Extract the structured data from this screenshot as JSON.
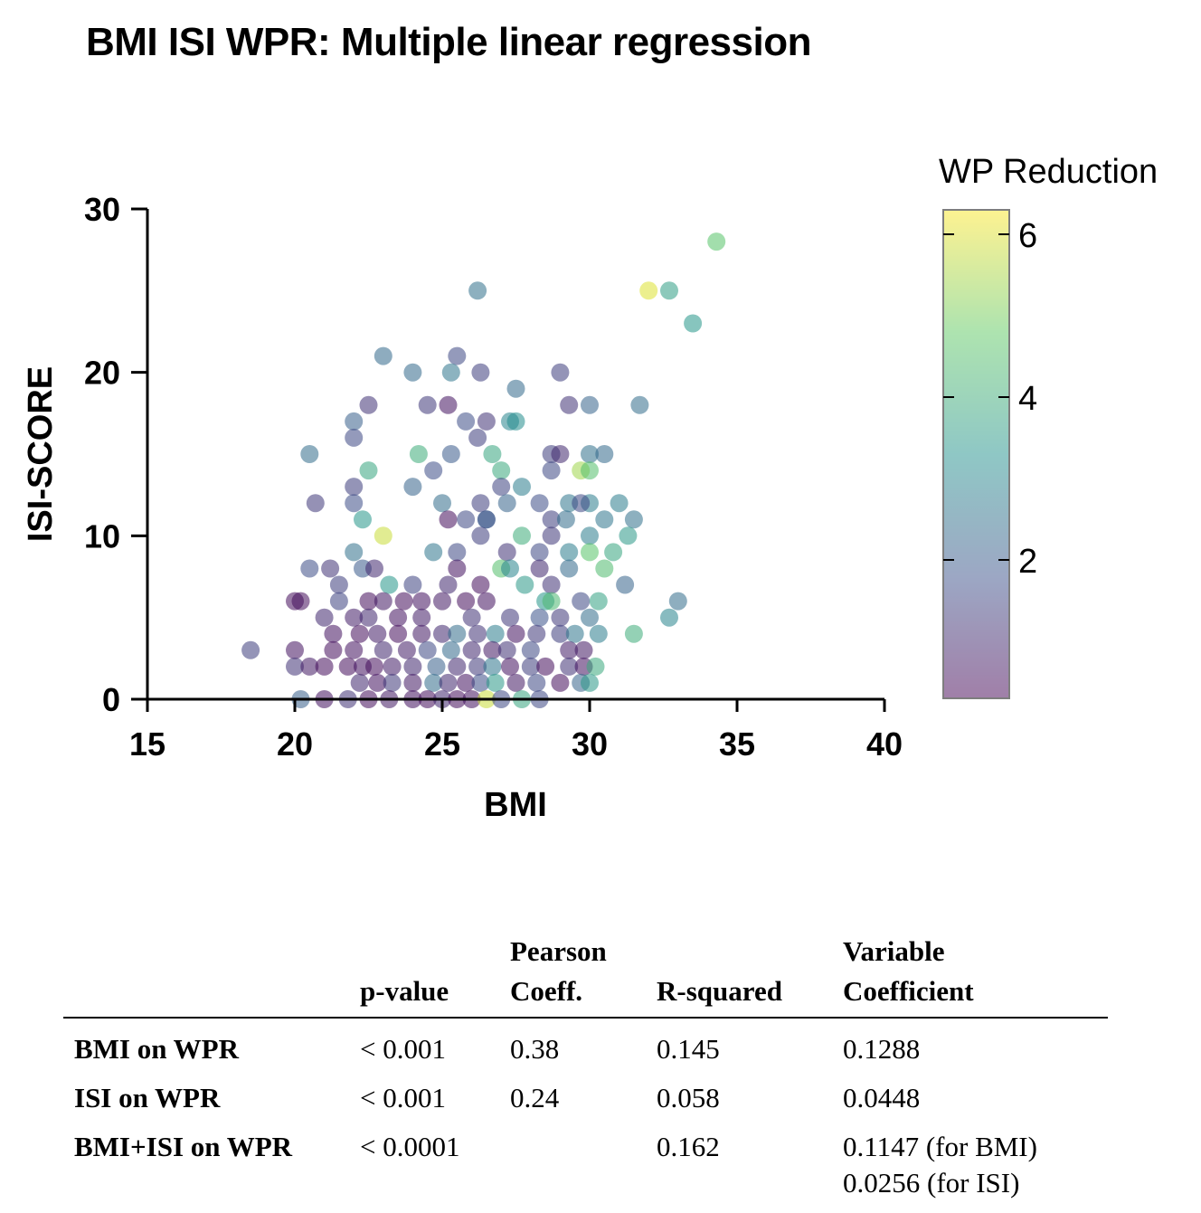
{
  "chart_data": {
    "type": "scatter",
    "title": "BMI ISI WPR: Multiple linear regression",
    "xlabel": "BMI",
    "ylabel": "ISI-SCORE",
    "xlim": [
      15,
      40
    ],
    "ylim": [
      0,
      30
    ],
    "xticks": [
      "15",
      "20",
      "25",
      "30",
      "35",
      "40"
    ],
    "yticks": [
      "0",
      "10",
      "20",
      "30"
    ],
    "colorbar": {
      "label": "WP Reduction",
      "range": [
        0.3,
        6.3
      ],
      "ticks": [
        "2",
        "4",
        "6"
      ],
      "colormap": "viridis"
    },
    "points": [
      [
        34.3,
        28,
        4.6
      ],
      [
        32.0,
        25,
        6.0
      ],
      [
        32.7,
        25,
        3.6
      ],
      [
        33.5,
        23,
        3.4
      ],
      [
        26.2,
        25,
        2.5
      ],
      [
        23.0,
        21,
        2.3
      ],
      [
        25.5,
        21,
        1.6
      ],
      [
        24.0,
        20,
        2.3
      ],
      [
        25.3,
        20,
        2.6
      ],
      [
        26.3,
        20,
        1.4
      ],
      [
        29.0,
        20,
        1.4
      ],
      [
        27.5,
        19,
        2.3
      ],
      [
        22.5,
        18,
        1.2
      ],
      [
        24.5,
        18,
        1.3
      ],
      [
        25.2,
        18,
        0.6
      ],
      [
        29.3,
        18,
        1.2
      ],
      [
        30.0,
        18,
        2.2
      ],
      [
        31.7,
        18,
        2.4
      ],
      [
        22.0,
        17,
        2.1
      ],
      [
        25.8,
        17,
        1.7
      ],
      [
        26.5,
        17,
        1.2
      ],
      [
        27.3,
        17,
        3.0
      ],
      [
        27.5,
        17,
        3.2
      ],
      [
        22.0,
        16,
        1.6
      ],
      [
        26.2,
        16,
        1.4
      ],
      [
        20.5,
        15,
        2.4
      ],
      [
        24.2,
        15,
        4.0
      ],
      [
        25.3,
        15,
        2.0
      ],
      [
        26.7,
        15,
        3.8
      ],
      [
        28.7,
        15,
        1.4
      ],
      [
        29.0,
        15,
        1.0
      ],
      [
        30.0,
        15,
        2.5
      ],
      [
        30.5,
        15,
        2.3
      ],
      [
        22.5,
        14,
        3.8
      ],
      [
        24.7,
        14,
        1.7
      ],
      [
        27.0,
        14,
        3.9
      ],
      [
        28.7,
        14,
        1.6
      ],
      [
        29.7,
        14,
        5.4
      ],
      [
        30.0,
        14,
        4.5
      ],
      [
        24.0,
        13,
        2.2
      ],
      [
        27.0,
        13,
        1.5
      ],
      [
        27.7,
        13,
        2.8
      ],
      [
        22.0,
        13,
        1.4
      ],
      [
        20.7,
        12,
        1.3
      ],
      [
        25.0,
        12,
        2.4
      ],
      [
        26.3,
        12,
        1.4
      ],
      [
        27.2,
        12,
        2.2
      ],
      [
        28.3,
        12,
        1.7
      ],
      [
        29.3,
        12,
        2.6
      ],
      [
        30.0,
        12,
        2.8
      ],
      [
        31.0,
        12,
        2.8
      ],
      [
        22.0,
        12,
        1.7
      ],
      [
        29.7,
        12,
        1.6
      ],
      [
        22.3,
        11,
        3.4
      ],
      [
        25.2,
        11,
        0.5
      ],
      [
        25.8,
        11,
        1.6
      ],
      [
        26.5,
        11,
        1.7
      ],
      [
        26.5,
        11,
        2.0
      ],
      [
        28.7,
        11,
        1.4
      ],
      [
        29.2,
        11,
        2.4
      ],
      [
        30.5,
        11,
        2.6
      ],
      [
        31.5,
        11,
        2.5
      ],
      [
        23.0,
        10,
        5.8
      ],
      [
        26.3,
        10,
        1.4
      ],
      [
        27.7,
        10,
        4.0
      ],
      [
        28.7,
        10,
        1.3
      ],
      [
        30.0,
        10,
        2.8
      ],
      [
        31.3,
        10,
        3.5
      ],
      [
        22.0,
        9,
        2.5
      ],
      [
        24.7,
        9,
        2.6
      ],
      [
        25.5,
        9,
        1.6
      ],
      [
        27.2,
        9,
        1.2
      ],
      [
        28.3,
        9,
        1.6
      ],
      [
        29.3,
        9,
        2.8
      ],
      [
        30.0,
        9,
        4.6
      ],
      [
        30.8,
        9,
        3.8
      ],
      [
        20.5,
        8,
        1.7
      ],
      [
        21.2,
        8,
        1.2
      ],
      [
        22.3,
        8,
        2.0
      ],
      [
        22.7,
        8,
        1.0
      ],
      [
        25.5,
        8,
        0.6
      ],
      [
        27.0,
        8,
        4.5
      ],
      [
        27.3,
        8,
        3.0
      ],
      [
        28.3,
        8,
        1.0
      ],
      [
        29.3,
        8,
        2.3
      ],
      [
        30.5,
        8,
        4.4
      ],
      [
        21.5,
        7,
        1.4
      ],
      [
        23.2,
        7,
        3.4
      ],
      [
        24.0,
        7,
        1.5
      ],
      [
        25.2,
        7,
        1.0
      ],
      [
        26.3,
        7,
        0.5
      ],
      [
        27.8,
        7,
        3.5
      ],
      [
        28.7,
        7,
        1.2
      ],
      [
        31.2,
        7,
        2.2
      ],
      [
        20.0,
        6,
        0.5
      ],
      [
        20.2,
        6,
        0.5
      ],
      [
        21.5,
        6,
        1.5
      ],
      [
        22.5,
        6,
        0.5
      ],
      [
        23.0,
        6,
        0.7
      ],
      [
        23.7,
        6,
        0.5
      ],
      [
        24.3,
        6,
        0.6
      ],
      [
        25.0,
        6,
        0.7
      ],
      [
        25.8,
        6,
        0.5
      ],
      [
        26.5,
        6,
        0.6
      ],
      [
        28.5,
        6,
        3.4
      ],
      [
        28.7,
        6,
        4.3
      ],
      [
        29.7,
        6,
        1.6
      ],
      [
        30.3,
        6,
        3.7
      ],
      [
        33.0,
        6,
        2.4
      ],
      [
        21.0,
        5,
        1.0
      ],
      [
        22.0,
        5,
        0.8
      ],
      [
        22.5,
        5,
        1.0
      ],
      [
        23.5,
        5,
        0.6
      ],
      [
        24.3,
        5,
        0.8
      ],
      [
        26.0,
        5,
        1.2
      ],
      [
        27.3,
        5,
        1.3
      ],
      [
        28.3,
        5,
        1.8
      ],
      [
        29.0,
        5,
        1.3
      ],
      [
        30.0,
        5,
        2.4
      ],
      [
        32.7,
        5,
        3.0
      ],
      [
        21.3,
        4,
        0.6
      ],
      [
        22.2,
        4,
        0.5
      ],
      [
        22.8,
        4,
        0.8
      ],
      [
        23.5,
        4,
        0.5
      ],
      [
        24.3,
        4,
        0.7
      ],
      [
        25.0,
        4,
        1.0
      ],
      [
        25.5,
        4,
        2.4
      ],
      [
        26.2,
        4,
        1.2
      ],
      [
        26.8,
        4,
        2.8
      ],
      [
        27.5,
        4,
        0.6
      ],
      [
        28.2,
        4,
        1.3
      ],
      [
        29.0,
        4,
        1.4
      ],
      [
        29.5,
        4,
        2.6
      ],
      [
        30.3,
        4,
        2.8
      ],
      [
        31.5,
        4,
        4.0
      ],
      [
        18.5,
        3,
        1.4
      ],
      [
        20.0,
        3,
        0.6
      ],
      [
        21.3,
        3,
        0.5
      ],
      [
        22.0,
        3,
        0.6
      ],
      [
        23.0,
        3,
        1.0
      ],
      [
        23.8,
        3,
        0.8
      ],
      [
        24.5,
        3,
        1.6
      ],
      [
        25.3,
        3,
        2.3
      ],
      [
        26.0,
        3,
        1.0
      ],
      [
        26.7,
        3,
        0.7
      ],
      [
        27.2,
        3,
        1.2
      ],
      [
        28.0,
        3,
        1.6
      ],
      [
        29.3,
        3,
        0.8
      ],
      [
        29.8,
        3,
        0.7
      ],
      [
        20.0,
        2,
        1.2
      ],
      [
        20.5,
        2,
        0.7
      ],
      [
        21.0,
        2,
        0.5
      ],
      [
        21.8,
        2,
        0.5
      ],
      [
        22.3,
        2,
        0.6
      ],
      [
        22.7,
        2,
        0.5
      ],
      [
        23.3,
        2,
        0.8
      ],
      [
        24.0,
        2,
        1.0
      ],
      [
        24.8,
        2,
        2.1
      ],
      [
        25.5,
        2,
        1.0
      ],
      [
        26.2,
        2,
        1.3
      ],
      [
        26.7,
        2,
        2.6
      ],
      [
        27.3,
        2,
        0.6
      ],
      [
        28.0,
        2,
        1.4
      ],
      [
        28.5,
        2,
        0.5
      ],
      [
        29.3,
        2,
        1.2
      ],
      [
        29.8,
        2,
        0.6
      ],
      [
        30.2,
        2,
        3.9
      ],
      [
        22.2,
        1,
        1.0
      ],
      [
        22.8,
        1,
        0.6
      ],
      [
        23.3,
        1,
        1.3
      ],
      [
        24.0,
        1,
        0.7
      ],
      [
        24.7,
        1,
        2.4
      ],
      [
        25.2,
        1,
        1.0
      ],
      [
        25.8,
        1,
        0.6
      ],
      [
        26.3,
        1,
        1.7
      ],
      [
        26.8,
        1,
        3.5
      ],
      [
        27.5,
        1,
        0.7
      ],
      [
        28.2,
        1,
        1.6
      ],
      [
        29.0,
        1,
        0.5
      ],
      [
        29.7,
        1,
        2.2
      ],
      [
        30.0,
        1,
        3.5
      ],
      [
        20.2,
        0,
        2.1
      ],
      [
        21.0,
        0,
        0.6
      ],
      [
        21.8,
        0,
        1.2
      ],
      [
        22.5,
        0,
        0.5
      ],
      [
        23.2,
        0,
        0.7
      ],
      [
        24.0,
        0,
        0.6
      ],
      [
        24.5,
        0,
        0.5
      ],
      [
        25.0,
        0,
        1.0
      ],
      [
        25.5,
        0,
        0.5
      ],
      [
        26.0,
        0,
        0.6
      ],
      [
        26.5,
        0,
        5.8
      ],
      [
        27.0,
        0,
        1.6
      ],
      [
        27.7,
        0,
        3.8
      ],
      [
        28.3,
        0,
        1.6
      ]
    ]
  },
  "stats_table": {
    "headers": {
      "p_value": "p-value",
      "pearson_1": "Pearson",
      "pearson_2": "Coeff.",
      "r_squared": "R-squared",
      "variable_1": "Variable",
      "variable_2": "Coefficient"
    },
    "rows": [
      {
        "label": "BMI on WPR",
        "p_value": "< 0.001",
        "pearson": "0.38",
        "r_squared": "0.145",
        "coef_1": "0.1288",
        "coef_2": ""
      },
      {
        "label": "ISI on WPR",
        "p_value": "< 0.001",
        "pearson": "0.24",
        "r_squared": "0.058",
        "coef_1": "0.0448",
        "coef_2": ""
      },
      {
        "label": "BMI+ISI on WPR",
        "p_value": "< 0.0001",
        "pearson": "",
        "r_squared": "0.162",
        "coef_1": "0.1147 (for BMI)",
        "coef_2": "0.0256 (for ISI)"
      }
    ]
  }
}
